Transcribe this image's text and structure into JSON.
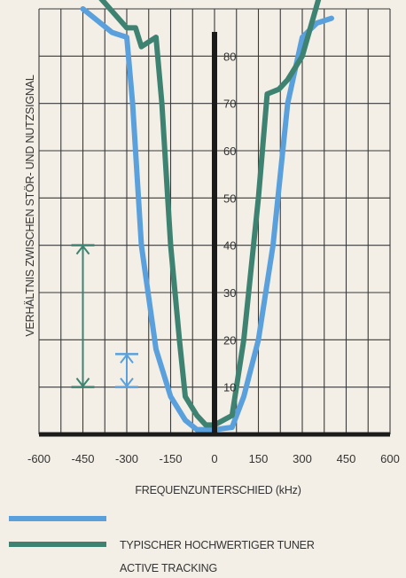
{
  "chart_data": {
    "type": "line",
    "title": "",
    "xlabel": "FREQUENZUNTERSCHIED (kHz)",
    "ylabel": "VERHÄLTNIS ZWISCHEN STÖR- UND NUTZSIGNAL",
    "xlim": [
      -600,
      600
    ],
    "ylim": [
      0,
      90
    ],
    "x_ticks": [
      -600,
      -450,
      -300,
      -150,
      0,
      150,
      300,
      450,
      600
    ],
    "y_ticks": [
      10,
      20,
      30,
      40,
      50,
      60,
      70,
      80
    ],
    "grid": true,
    "legend_position": "bottom-left",
    "series": [
      {
        "name": "TYPISCHER HOCHWERTIGER TUNER",
        "color": "#5aa0dc",
        "x": [
          -450,
          -400,
          -350,
          -300,
          -280,
          -250,
          -200,
          -150,
          -100,
          -60,
          0,
          60,
          100,
          150,
          200,
          250,
          300,
          350,
          400
        ],
        "y": [
          90,
          87.5,
          85,
          84,
          70,
          40,
          18,
          8,
          3,
          1,
          1,
          1.5,
          8,
          20,
          40,
          70,
          84,
          87,
          88
        ]
      },
      {
        "name": "ACTIVE TRACKING",
        "color": "#3e8272",
        "x": [
          -450,
          -400,
          -300,
          -270,
          -250,
          -200,
          -180,
          -150,
          -120,
          -100,
          -60,
          -30,
          0,
          30,
          60,
          100,
          150,
          180,
          220,
          250,
          300,
          360,
          400
        ],
        "y": [
          95,
          93,
          86,
          86,
          82,
          84,
          70,
          40,
          20,
          8,
          4,
          2,
          2,
          3,
          4,
          20,
          50,
          72,
          73,
          75,
          80,
          93,
          94
        ]
      }
    ],
    "annotations": [
      {
        "type": "vertical-arrow",
        "x": -450,
        "y_from": 10,
        "y_to": 40,
        "color": "#3e8272"
      },
      {
        "type": "vertical-arrow",
        "x": -300,
        "y_from": 10,
        "y_to": 17,
        "color": "#5aa0dc"
      }
    ]
  }
}
